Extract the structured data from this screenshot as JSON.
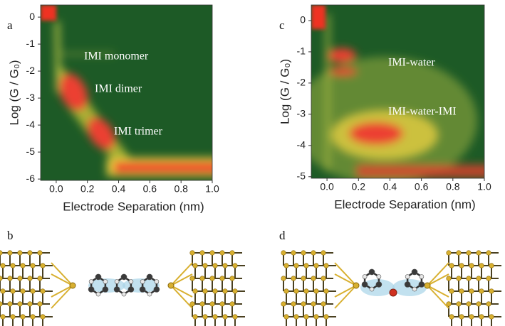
{
  "chart_data": [
    {
      "type": "heatmap",
      "panel_label": "a",
      "xlabel": "Electrode Separation (nm)",
      "ylabel": "Log (G / G₀)",
      "xlim": [
        -0.1,
        1.0
      ],
      "xticks": [
        {
          "value": 0,
          "label": "0.0"
        },
        0.2,
        0.4,
        0.6,
        0.8,
        {
          "value": 1,
          "label": "1.0"
        }
      ],
      "ylim": [
        -6.05,
        0.45
      ],
      "yticks": [
        0,
        -1,
        -2,
        -3,
        -4,
        -5,
        -6
      ],
      "annotations": [
        "IMI monomer",
        "IMI dimer",
        "IMI trimer"
      ]
    },
    {
      "type": "heatmap",
      "panel_label": "c",
      "xlabel": "Electrode Separation (nm)",
      "ylabel": "Log (G / G₀)",
      "xlim": [
        -0.1,
        1.0
      ],
      "xticks": [
        {
          "value": 0,
          "label": "0.0"
        },
        0.2,
        0.4,
        0.6,
        0.8,
        {
          "value": 1,
          "label": "1.0"
        }
      ],
      "ylim": [
        -5.05,
        0.5
      ],
      "yticks": [
        0,
        -1,
        -2,
        -3,
        -4,
        -5
      ],
      "annotations": [
        "IMI-water",
        "IMI-water-IMI"
      ]
    }
  ],
  "structures": [
    {
      "panel_label": "b"
    },
    {
      "panel_label": "d"
    }
  ]
}
